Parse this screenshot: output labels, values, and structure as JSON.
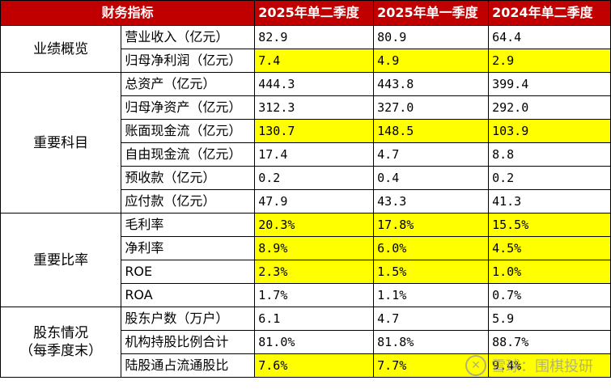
{
  "header": [
    "财务指标",
    "2025年单二季度",
    "2025年单一季度",
    "2024年单二季度"
  ],
  "groups": [
    {
      "category": "业绩概览",
      "rows": [
        {
          "label": "营业收入（亿元）",
          "values": [
            "82.9",
            "80.9",
            "64.4"
          ],
          "highlight": false
        },
        {
          "label": "归母净利润（亿元）",
          "values": [
            "7.4",
            "4.9",
            "2.9"
          ],
          "highlight": true
        }
      ]
    },
    {
      "category": "重要科目",
      "rows": [
        {
          "label": "总资产（亿元）",
          "values": [
            "444.3",
            "443.8",
            "399.4"
          ],
          "highlight": false
        },
        {
          "label": "归母净资产（亿元）",
          "values": [
            "312.3",
            "327.0",
            "292.0"
          ],
          "highlight": false
        },
        {
          "label": "账面现金流（亿元）",
          "values": [
            "130.7",
            "148.5",
            "103.9"
          ],
          "highlight": true
        },
        {
          "label": "自由现金流（亿元）",
          "values": [
            "17.4",
            "4.7",
            "8.8"
          ],
          "highlight": false
        },
        {
          "label": "预收款（亿元）",
          "values": [
            "0.2",
            "0.4",
            "0.2"
          ],
          "highlight": false
        },
        {
          "label": "应付款（亿元）",
          "values": [
            "47.9",
            "43.3",
            "41.3"
          ],
          "highlight": false
        }
      ]
    },
    {
      "category": "重要比率",
      "rows": [
        {
          "label": "毛利率",
          "values": [
            "20.3%",
            "17.8%",
            "15.5%"
          ],
          "highlight": true
        },
        {
          "label": "净利率",
          "values": [
            "8.9%",
            "6.0%",
            "4.5%"
          ],
          "highlight": true
        },
        {
          "label": "ROE",
          "values": [
            "2.3%",
            "1.5%",
            "1.0%"
          ],
          "highlight": true
        },
        {
          "label": "ROA",
          "values": [
            "1.7%",
            "1.1%",
            "0.7%"
          ],
          "highlight": false
        }
      ]
    },
    {
      "category": "股东情况\n（每季度末）",
      "rows": [
        {
          "label": "股东户数（万户）",
          "values": [
            "6.1",
            "4.7",
            "5.9"
          ],
          "highlight": false
        },
        {
          "label": "机构持股比例合计",
          "values": [
            "81.0%",
            "81.8%",
            "88.7%"
          ],
          "highlight": false
        },
        {
          "label": "陆股通占流通股比",
          "values": [
            "7.6%",
            "7.7%",
            "9.4%"
          ],
          "highlight": true
        }
      ]
    }
  ],
  "colors": {
    "header_bg": "#c00000",
    "header_text": "#ffffff",
    "highlight": "#ffff00"
  },
  "watermark": {
    "icon": "snowball-logo-icon",
    "text": "雪球：围棋投研"
  }
}
